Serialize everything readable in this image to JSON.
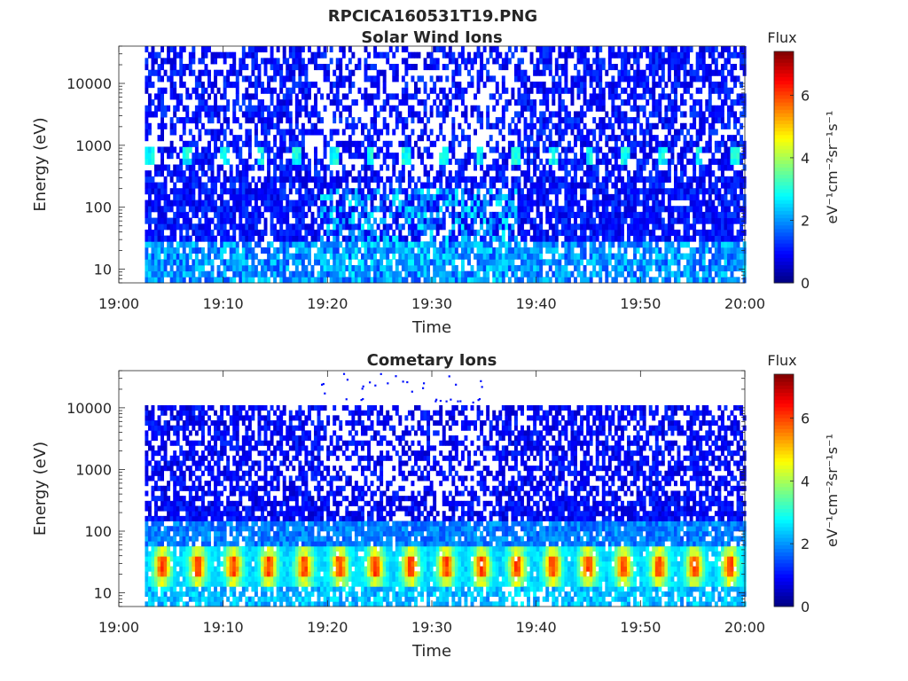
{
  "figure": {
    "title": "RPCICA160531T19.PNG"
  },
  "colormap": [
    "#00007f",
    "#0000ff",
    "#007fff",
    "#00ffff",
    "#7fff7f",
    "#ffff00",
    "#ff7f00",
    "#ff0000",
    "#7f0000"
  ],
  "chart_data": [
    {
      "type": "heatmap",
      "title": "Solar Wind Ions",
      "xlabel": "Time",
      "ylabel": "Energy (eV)",
      "x_ticks": [
        "19:00",
        "19:10",
        "19:20",
        "19:30",
        "19:40",
        "19:50",
        "20:00"
      ],
      "xlim": [
        "19:00",
        "20:00"
      ],
      "y_scale": "log",
      "y_ticks": [
        10,
        100,
        1000,
        10000
      ],
      "ylim": [
        6,
        40000
      ],
      "data_time_range": [
        "19:02.5",
        "20:00"
      ],
      "data_energy_range": [
        6,
        40000
      ],
      "colorbar": {
        "title": "Flux",
        "label": "eV⁻¹cm⁻²sr⁻¹s⁻¹",
        "range": [
          0,
          7.4
        ],
        "ticks": [
          0,
          2,
          4,
          6
        ]
      },
      "features": {
        "typical_flux": 1.0,
        "enhanced_band": {
          "energy_range": [
            500,
            1000
          ],
          "flux": 2.8,
          "time_period_min": 3.5
        },
        "low_energy_band": {
          "energy_range": [
            6,
            30
          ],
          "flux": 2.2
        },
        "sparse_interval": [
          "19:19",
          "19:38"
        ]
      }
    },
    {
      "type": "heatmap",
      "title": "Cometary Ions",
      "xlabel": "Time",
      "ylabel": "Energy (eV)",
      "x_ticks": [
        "19:00",
        "19:10",
        "19:20",
        "19:30",
        "19:40",
        "19:50",
        "20:00"
      ],
      "xlim": [
        "19:00",
        "20:00"
      ],
      "y_scale": "log",
      "y_ticks": [
        10,
        100,
        1000,
        10000
      ],
      "ylim": [
        6,
        40000
      ],
      "data_time_range": [
        "19:02.5",
        "20:00"
      ],
      "data_energy_range": [
        6,
        11000
      ],
      "colorbar": {
        "title": "Flux",
        "label": "eV⁻¹cm⁻²sr⁻¹s⁻¹",
        "range": [
          0,
          7.4
        ],
        "ticks": [
          0,
          2,
          4,
          6
        ]
      },
      "features": {
        "typical_flux": 0.9,
        "cometary_peak": {
          "energy_range": [
            20,
            40
          ],
          "flux": 5.8,
          "time_period_min": 3.4
        },
        "sparse_interval": [
          "19:19",
          "19:36"
        ],
        "isolated_points_above_10keV": [
          "19:19",
          "19:35"
        ]
      }
    }
  ]
}
